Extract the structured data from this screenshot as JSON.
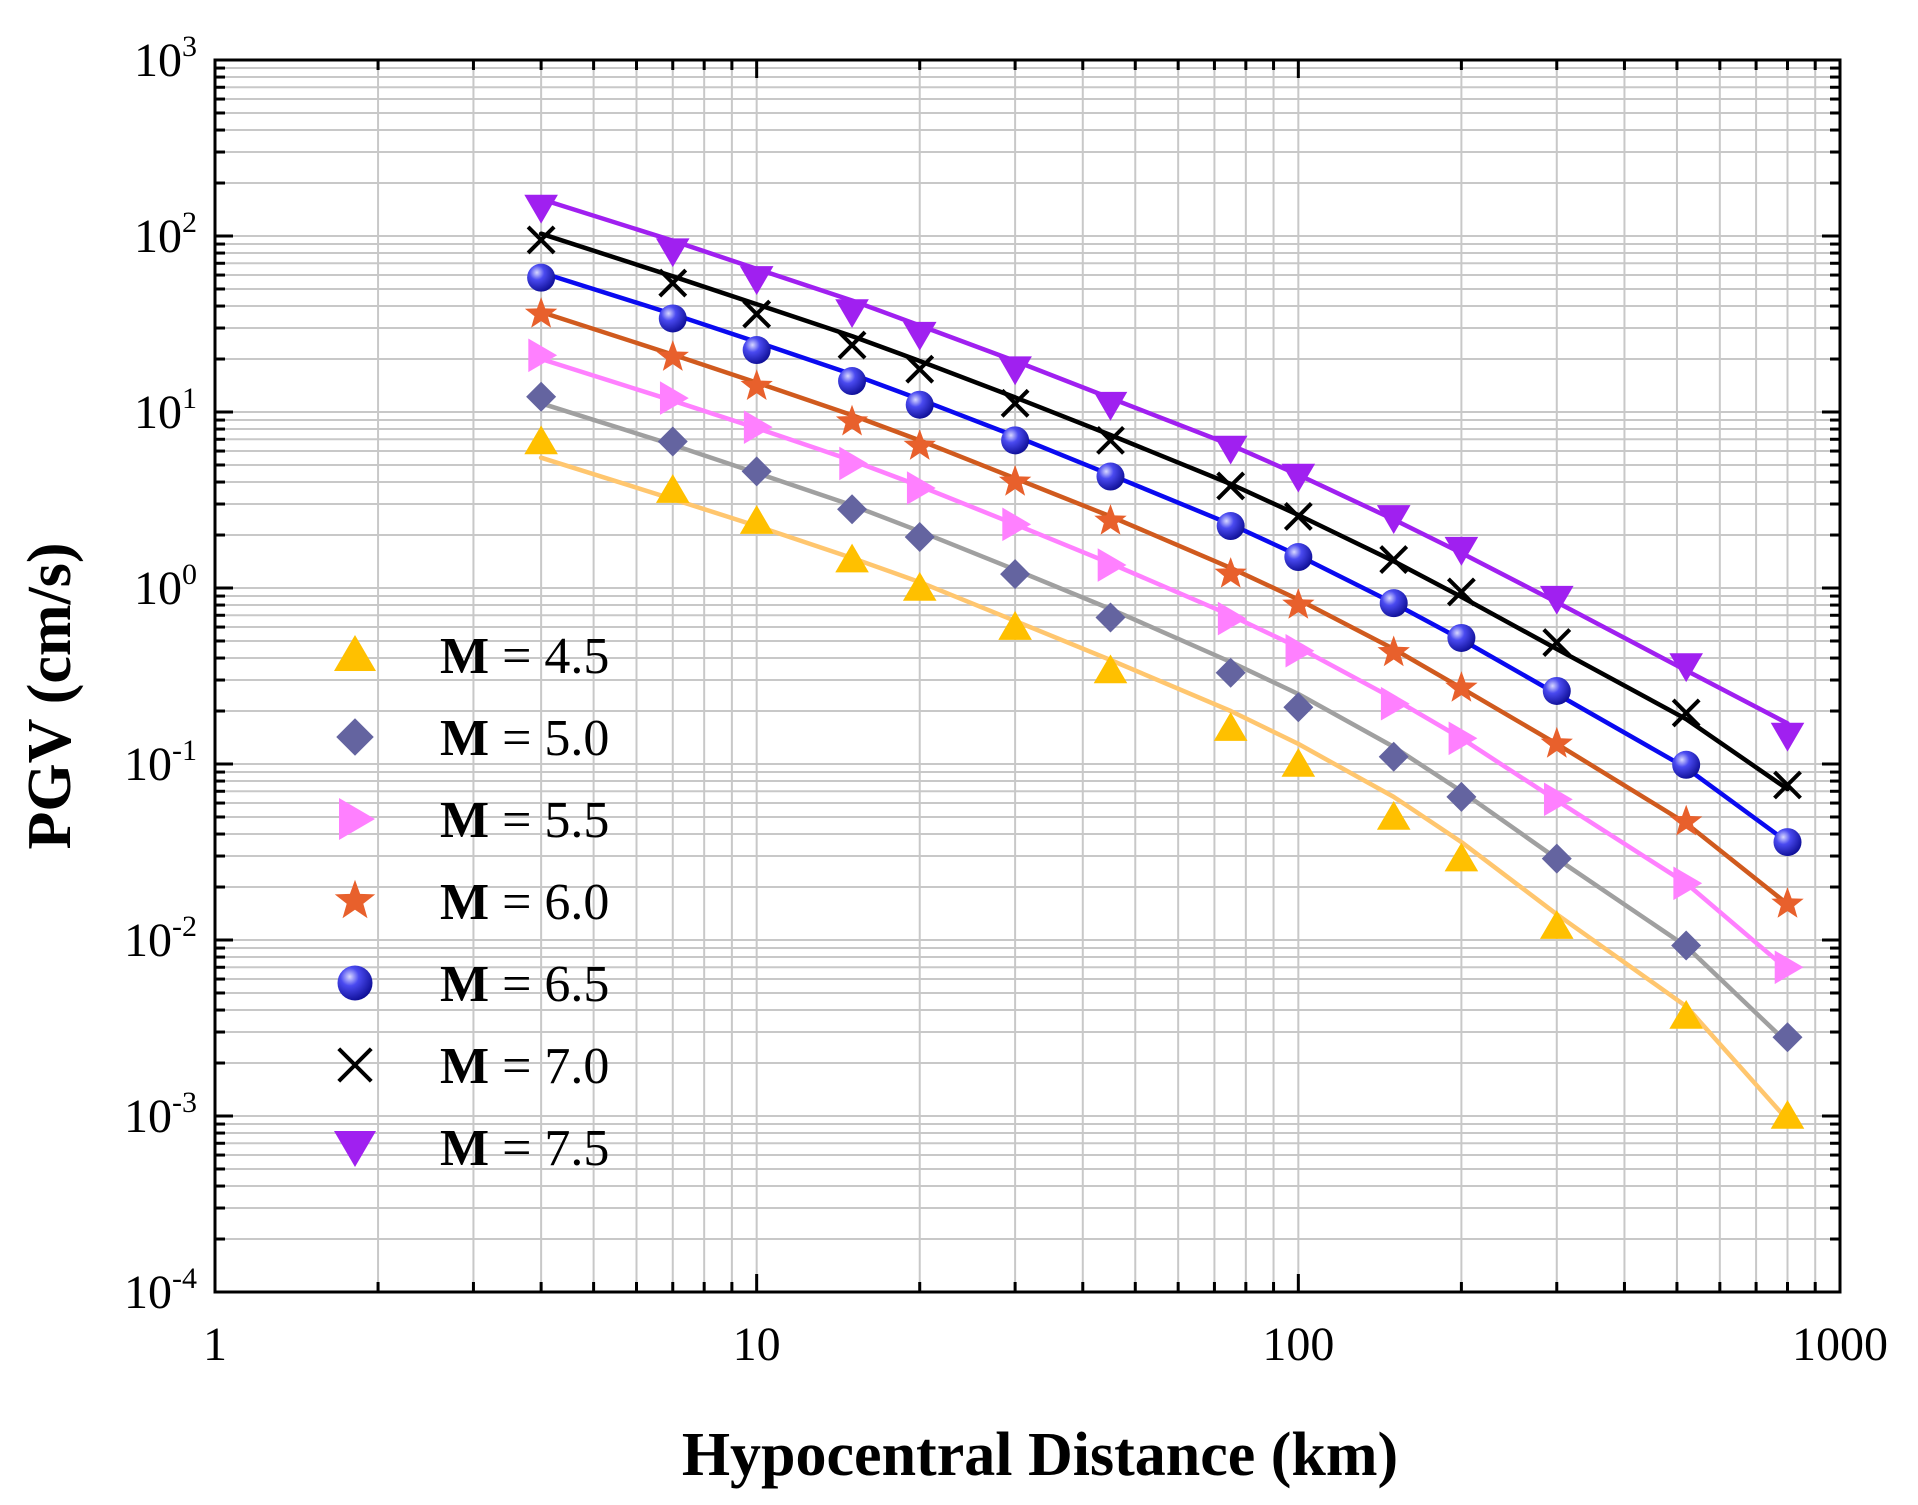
{
  "chart_data": {
    "type": "line",
    "xscale": "log",
    "yscale": "log",
    "xlabel": "Hypocentral Distance (km)",
    "ylabel": "PGV (cm/s)",
    "xlim": [
      1,
      1000
    ],
    "ylim": [
      0.0001,
      1000
    ],
    "grid": true,
    "legend_position": "bottom-left",
    "x_ticks": [
      {
        "value": 1,
        "label": "1"
      },
      {
        "value": 10,
        "label": "10"
      },
      {
        "value": 100,
        "label": "100"
      },
      {
        "value": 1000,
        "label": "1000"
      }
    ],
    "y_ticks": [
      {
        "value": 0.0001,
        "base": "10",
        "exp": "-4"
      },
      {
        "value": 0.001,
        "base": "10",
        "exp": "-3"
      },
      {
        "value": 0.01,
        "base": "10",
        "exp": "-2"
      },
      {
        "value": 0.1,
        "base": "10",
        "exp": "-1"
      },
      {
        "value": 1,
        "base": "10",
        "exp": "0"
      },
      {
        "value": 10,
        "base": "10",
        "exp": "1"
      },
      {
        "value": 100,
        "base": "10",
        "exp": "2"
      },
      {
        "value": 1000,
        "base": "10",
        "exp": "3"
      }
    ],
    "x": [
      4,
      7,
      10,
      15,
      20,
      30,
      45,
      75,
      100,
      150,
      200,
      300,
      520,
      800
    ],
    "series": [
      {
        "name": "M = 4.5",
        "magnitude_label": "M",
        "value_label": " = 4.5",
        "marker": "triangle-up",
        "marker_color": "#FFC000",
        "line_color": "#FFC66E",
        "points": [
          6.8,
          3.6,
          2.4,
          1.45,
          1.0,
          0.6,
          0.34,
          0.16,
          0.1,
          0.05,
          0.029,
          0.012,
          0.0037,
          0.001
        ],
        "fit": [
          5.5,
          3.2,
          2.25,
          1.48,
          1.08,
          0.65,
          0.39,
          0.2,
          0.13,
          0.065,
          0.036,
          0.014,
          0.0042,
          0.00095
        ]
      },
      {
        "name": "M = 5.0",
        "magnitude_label": "M",
        "value_label": " = 5.0",
        "marker": "diamond",
        "marker_color": "#6464A0",
        "line_color": "#A0A0A0",
        "points": [
          12.2,
          6.8,
          4.6,
          2.8,
          1.95,
          1.2,
          0.68,
          0.33,
          0.21,
          0.11,
          0.065,
          0.029,
          0.0093,
          0.0028
        ],
        "fit": [
          11.2,
          6.5,
          4.5,
          2.95,
          2.1,
          1.27,
          0.76,
          0.38,
          0.25,
          0.125,
          0.07,
          0.029,
          0.0092,
          0.0026
        ]
      },
      {
        "name": "M = 5.5",
        "magnitude_label": "M",
        "value_label": " = 5.5",
        "marker": "triangle-right",
        "marker_color": "#FF80FF",
        "line_color": "#FF80FF",
        "points": [
          21,
          12,
          8.2,
          5.1,
          3.7,
          2.3,
          1.35,
          0.67,
          0.44,
          0.22,
          0.14,
          0.063,
          0.021,
          0.007
        ],
        "fit": [
          20,
          11.6,
          8.1,
          5.3,
          3.8,
          2.3,
          1.38,
          0.7,
          0.46,
          0.235,
          0.14,
          0.062,
          0.021,
          0.0068
        ]
      },
      {
        "name": "M = 6.0",
        "magnitude_label": "M",
        "value_label": " = 6.0",
        "marker": "star",
        "marker_color": "#E8602C",
        "line_color": "#D05A1E",
        "points": [
          36,
          20.5,
          14,
          8.8,
          6.4,
          4.0,
          2.4,
          1.2,
          0.8,
          0.43,
          0.27,
          0.13,
          0.047,
          0.016
        ],
        "fit": [
          37,
          21.2,
          14.7,
          9.6,
          6.9,
          4.2,
          2.55,
          1.3,
          0.86,
          0.45,
          0.27,
          0.13,
          0.046,
          0.016
        ]
      },
      {
        "name": "M = 6.5",
        "magnitude_label": "M",
        "value_label": " = 6.5",
        "marker": "sphere",
        "marker_color": "#2020E0",
        "line_color": "#0A0AF0",
        "points": [
          58,
          34,
          22.5,
          15,
          11,
          6.9,
          4.3,
          2.25,
          1.5,
          0.82,
          0.52,
          0.26,
          0.099,
          0.036
        ],
        "fit": [
          62,
          36,
          25,
          16.4,
          11.8,
          7.3,
          4.4,
          2.3,
          1.53,
          0.82,
          0.51,
          0.25,
          0.095,
          0.036
        ]
      },
      {
        "name": "M = 7.0",
        "magnitude_label": "M",
        "value_label": " = 7.0",
        "marker": "x",
        "marker_color": "#000000",
        "line_color": "#000000",
        "points": [
          95,
          54,
          36,
          24,
          17.5,
          11.2,
          6.9,
          3.8,
          2.55,
          1.45,
          0.95,
          0.49,
          0.195,
          0.076
        ],
        "fit": [
          103,
          59,
          41,
          27,
          19.5,
          12.1,
          7.4,
          3.9,
          2.6,
          1.42,
          0.89,
          0.45,
          0.18,
          0.072
        ]
      },
      {
        "name": "M = 7.5",
        "magnitude_label": "M",
        "value_label": " = 7.5",
        "marker": "triangle-down",
        "marker_color": "#A020F0",
        "line_color": "#A020F0",
        "points": [
          145,
          82,
          57,
          37,
          27.5,
          17.5,
          11,
          6.2,
          4.3,
          2.5,
          1.65,
          0.87,
          0.36,
          0.145
        ],
        "fit": [
          162,
          94,
          65,
          43,
          31,
          19.5,
          12,
          6.5,
          4.4,
          2.45,
          1.58,
          0.83,
          0.34,
          0.17
        ]
      }
    ]
  }
}
